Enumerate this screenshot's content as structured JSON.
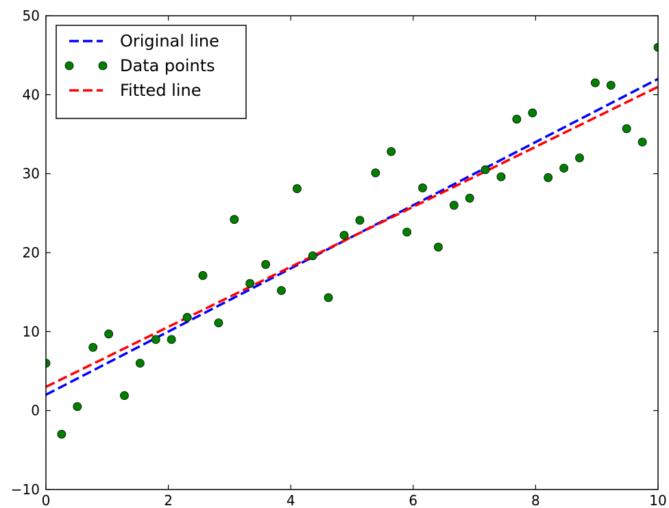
{
  "chart_data": {
    "type": "scatter",
    "title": "",
    "xlabel": "",
    "ylabel": "",
    "xlim": [
      0,
      10
    ],
    "ylim": [
      -10,
      50
    ],
    "grid": false,
    "legend_position": "top-left",
    "x_ticks": [
      0,
      2,
      4,
      6,
      8,
      10
    ],
    "y_ticks": [
      -10,
      0,
      10,
      20,
      30,
      40,
      50
    ],
    "x_tick_labels": [
      "0",
      "2",
      "4",
      "6",
      "8",
      "10"
    ],
    "y_tick_labels": [
      "−10",
      "0",
      "10",
      "20",
      "30",
      "40",
      "50"
    ],
    "series": [
      {
        "name": "Original line",
        "kind": "line",
        "style": "dashed",
        "color": "#0000ff",
        "x": [
          0,
          10
        ],
        "y": [
          2,
          42
        ]
      },
      {
        "name": "Data points",
        "kind": "points",
        "color": "#007f00",
        "x": [
          0,
          0.256,
          0.513,
          0.769,
          1.026,
          1.282,
          1.538,
          1.795,
          2.051,
          2.308,
          2.564,
          2.821,
          3.077,
          3.333,
          3.59,
          3.846,
          4.103,
          4.359,
          4.615,
          4.872,
          5.128,
          5.385,
          5.641,
          5.897,
          6.154,
          6.41,
          6.667,
          6.923,
          7.179,
          7.436,
          7.692,
          7.949,
          8.205,
          8.462,
          8.718,
          8.974,
          9.231,
          9.487,
          9.744,
          10
        ],
        "y": [
          6,
          -3,
          0.5,
          8,
          9.7,
          1.9,
          6,
          9,
          9,
          11.8,
          17.1,
          11.1,
          24.2,
          16.1,
          18.5,
          15.2,
          28.1,
          19.6,
          14.3,
          22.2,
          24.1,
          30.1,
          32.8,
          22.6,
          28.2,
          20.7,
          26,
          26.9,
          30.5,
          29.6,
          36.9,
          37.7,
          29.5,
          30.7,
          32,
          41.5,
          41.2,
          35.7,
          34,
          46
        ]
      },
      {
        "name": "Fitted line",
        "kind": "line",
        "style": "dashed",
        "color": "#ff0000",
        "x": [
          0,
          10
        ],
        "y": [
          3,
          41
        ]
      }
    ]
  }
}
